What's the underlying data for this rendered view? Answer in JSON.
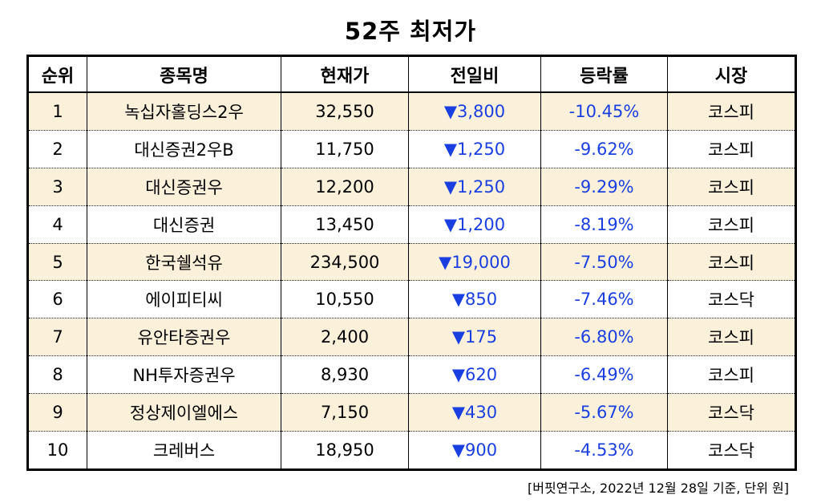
{
  "title": "52주 최저가",
  "columns": [
    "순위",
    "종목명",
    "현재가",
    "전일비",
    "등락률",
    "시장"
  ],
  "rows": [
    {
      "rank": "1",
      "name": "녹십자홀딩스2우",
      "price": "32,550",
      "change": "▼3,800",
      "rate": "-10.45%",
      "market": "코스피"
    },
    {
      "rank": "2",
      "name": "대신증권2우B",
      "price": "11,750",
      "change": "▼1,250",
      "rate": "-9.62%",
      "market": "코스피"
    },
    {
      "rank": "3",
      "name": "대신증권우",
      "price": "12,200",
      "change": "▼1,250",
      "rate": "-9.29%",
      "market": "코스피"
    },
    {
      "rank": "4",
      "name": "대신증권",
      "price": "13,450",
      "change": "▼1,200",
      "rate": "-8.19%",
      "market": "코스피"
    },
    {
      "rank": "5",
      "name": "한국쉘석유",
      "price": "234,500",
      "change": "▼19,000",
      "rate": "-7.50%",
      "market": "코스피"
    },
    {
      "rank": "6",
      "name": "에이피티씨",
      "price": "10,550",
      "change": "▼850",
      "rate": "-7.46%",
      "market": "코스닥"
    },
    {
      "rank": "7",
      "name": "유안타증권우",
      "price": "2,400",
      "change": "▼175",
      "rate": "-6.80%",
      "market": "코스피"
    },
    {
      "rank": "8",
      "name": "NH투자증권우",
      "price": "8,930",
      "change": "▼620",
      "rate": "-6.49%",
      "market": "코스피"
    },
    {
      "rank": "9",
      "name": "정상제이엘에스",
      "price": "7,150",
      "change": "▼430",
      "rate": "-5.67%",
      "market": "코스닥"
    },
    {
      "rank": "10",
      "name": "크레버스",
      "price": "18,950",
      "change": "▼900",
      "rate": "-4.53%",
      "market": "코스닥"
    }
  ],
  "source": "[버핏연구소, 2022년 12월 28일 기준, 단위 원]",
  "colors": {
    "odd_row_bg": "#fbf0d9",
    "down_color": "#1a3fe0"
  }
}
